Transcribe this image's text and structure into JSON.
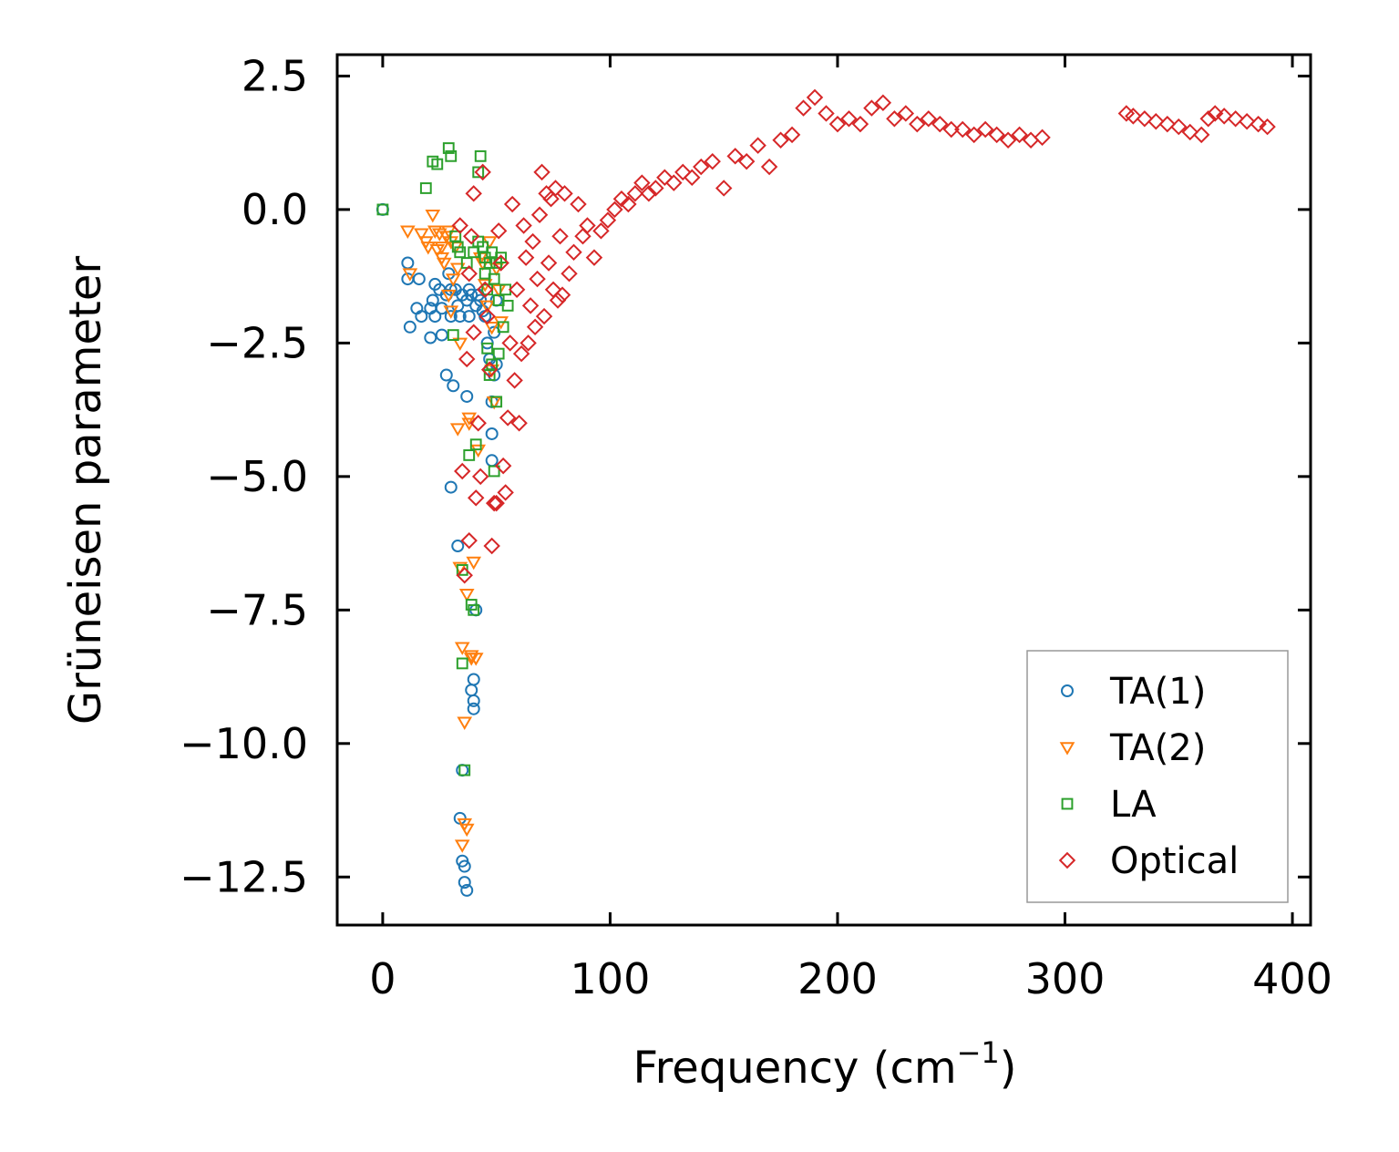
{
  "chart_data": {
    "type": "scatter",
    "xlabel": "Frequency (cm",
    "xlabel_sup": "−1",
    "xlabel_end": ")",
    "ylabel": "Grüneisen parameter",
    "xlim": [
      -20,
      408
    ],
    "ylim": [
      -13.4,
      2.9
    ],
    "x_ticks": [
      0,
      100,
      200,
      300,
      400
    ],
    "x_tick_labels": [
      "0",
      "100",
      "200",
      "300",
      "400"
    ],
    "y_ticks": [
      2.5,
      0.0,
      -2.5,
      -5.0,
      -7.5,
      -10.0,
      -12.5
    ],
    "y_tick_labels": [
      "2.5",
      "0.0",
      "−2.5",
      "−5.0",
      "−7.5",
      "−10.0",
      "−12.5"
    ],
    "legend_position": "lower-right",
    "series": [
      {
        "name": "TA(1)",
        "marker": "circle",
        "color": "#1f77b4",
        "x": [
          0,
          11,
          11,
          12,
          15,
          16,
          17,
          21,
          21,
          22,
          23,
          23,
          25,
          26,
          26,
          28,
          28,
          29,
          30,
          30,
          30,
          31,
          32,
          33,
          33,
          34,
          34,
          35,
          35,
          35,
          36,
          36,
          37,
          37,
          37,
          38,
          38,
          39,
          39,
          40,
          40,
          40,
          41,
          41,
          42,
          43,
          44,
          45,
          46,
          47,
          47,
          48,
          48,
          48,
          49,
          49,
          50,
          50
        ],
        "y": [
          0.0,
          -1.0,
          -1.3,
          -2.2,
          -1.85,
          -1.3,
          -2.0,
          -2.4,
          -1.85,
          -1.7,
          -1.4,
          -2.0,
          -1.5,
          -1.85,
          -2.35,
          -1.6,
          -3.1,
          -1.2,
          -2.0,
          -1.5,
          -5.2,
          -3.3,
          -1.5,
          -6.3,
          -1.8,
          -2.0,
          -11.4,
          -1.6,
          -12.2,
          -10.5,
          -12.3,
          -12.6,
          -1.7,
          -12.75,
          -3.5,
          -1.5,
          -2.0,
          -1.6,
          -9.0,
          -8.8,
          -9.2,
          -9.35,
          -7.5,
          -1.8,
          -1.6,
          -1.7,
          -1.9,
          -2.0,
          -2.5,
          -2.8,
          -3.0,
          -3.6,
          -4.2,
          -4.7,
          -2.3,
          -3.1,
          -1.7,
          -2.9
        ]
      },
      {
        "name": "TA(2)",
        "marker": "triangle",
        "color": "#ff7f0e",
        "x": [
          11,
          12,
          17,
          19,
          20,
          22,
          23,
          24,
          25,
          26,
          26,
          27,
          28,
          29,
          29,
          30,
          30,
          31,
          32,
          33,
          33,
          34,
          34,
          35,
          35,
          36,
          36,
          37,
          37,
          38,
          38,
          39,
          39,
          40,
          41,
          42,
          43,
          44,
          45,
          46,
          47,
          48,
          48,
          49,
          50,
          51,
          52
        ],
        "y": [
          -0.4,
          -1.2,
          -0.45,
          -0.6,
          -0.7,
          -0.1,
          -0.4,
          -0.75,
          -0.45,
          -0.7,
          -0.9,
          -1.0,
          -0.5,
          -0.4,
          -1.6,
          -0.6,
          -1.9,
          -1.3,
          -0.7,
          -4.1,
          -1.1,
          -6.7,
          -2.5,
          -8.2,
          -11.9,
          -11.5,
          -9.6,
          -7.2,
          -11.6,
          -3.9,
          -4.0,
          -8.4,
          -8.35,
          -6.6,
          -8.4,
          -4.5,
          -0.9,
          -1.0,
          -1.4,
          -1.8,
          -0.6,
          -2.2,
          -3.0,
          -3.6,
          -1.1,
          -1.5,
          -2.1
        ]
      },
      {
        "name": "LA",
        "marker": "square",
        "color": "#2ca02c",
        "x": [
          0,
          19,
          22,
          24,
          29,
          30,
          31,
          32,
          33,
          34,
          35,
          35,
          36,
          37,
          38,
          39,
          40,
          40,
          41,
          42,
          42,
          43,
          44,
          45,
          45,
          46,
          46,
          47,
          47,
          48,
          48,
          49,
          49,
          50,
          50,
          51,
          51,
          52,
          53,
          54,
          55
        ],
        "y": [
          0.0,
          0.4,
          0.9,
          0.85,
          1.15,
          1.0,
          -2.35,
          -0.5,
          -0.7,
          -0.8,
          -6.75,
          -8.5,
          -10.5,
          -1.0,
          -4.6,
          -7.4,
          -7.5,
          -0.8,
          -4.4,
          0.7,
          -0.6,
          1.0,
          -0.7,
          -0.9,
          -1.2,
          -1.5,
          -2.6,
          -1.0,
          -3.1,
          -0.8,
          -2.9,
          -4.9,
          -1.3,
          -3.6,
          -1.0,
          -1.7,
          -2.7,
          -0.9,
          -2.2,
          -1.5,
          -1.8
        ]
      },
      {
        "name": "Optical",
        "marker": "diamond",
        "color": "#d62728",
        "x": [
          34,
          35,
          36,
          37,
          38,
          38,
          39,
          40,
          40,
          41,
          42,
          43,
          44,
          45,
          46,
          47,
          48,
          49,
          50,
          51,
          52,
          53,
          54,
          55,
          56,
          57,
          58,
          59,
          60,
          61,
          62,
          63,
          64,
          65,
          66,
          67,
          68,
          69,
          70,
          71,
          72,
          73,
          74,
          75,
          76,
          77,
          78,
          79,
          80,
          82,
          84,
          86,
          88,
          90,
          93,
          96,
          99,
          102,
          105,
          108,
          111,
          114,
          117,
          120,
          124,
          128,
          132,
          136,
          140,
          145,
          150,
          155,
          160,
          165,
          170,
          175,
          180,
          185,
          190,
          195,
          200,
          205,
          210,
          215,
          220,
          225,
          230,
          235,
          240,
          245,
          250,
          255,
          260,
          265,
          270,
          275,
          280,
          285,
          290,
          327,
          330,
          335,
          340,
          345,
          350,
          355,
          360,
          363,
          366,
          370,
          375,
          380,
          385,
          389
        ],
        "y": [
          -0.3,
          -4.9,
          -6.85,
          -2.8,
          -6.2,
          -1.2,
          -0.5,
          0.3,
          -2.3,
          -5.4,
          -4.0,
          -5.0,
          0.7,
          -1.5,
          -2.0,
          -3.0,
          -6.3,
          -5.5,
          -5.5,
          -0.4,
          -1.0,
          -4.8,
          -5.3,
          -3.9,
          -2.5,
          0.1,
          -3.2,
          -1.5,
          -4.0,
          -2.7,
          -0.3,
          -0.9,
          -2.5,
          -1.8,
          -0.6,
          -2.2,
          -1.3,
          -0.1,
          0.7,
          -2.0,
          0.3,
          -1.0,
          0.2,
          -1.5,
          0.4,
          -1.7,
          -0.5,
          -1.6,
          0.3,
          -1.2,
          -0.8,
          0.1,
          -0.5,
          -0.3,
          -0.9,
          -0.4,
          -0.2,
          0.0,
          0.2,
          0.1,
          0.3,
          0.5,
          0.3,
          0.4,
          0.6,
          0.5,
          0.7,
          0.6,
          0.8,
          0.9,
          0.4,
          1.0,
          0.9,
          1.2,
          0.8,
          1.3,
          1.4,
          1.9,
          2.1,
          1.8,
          1.6,
          1.7,
          1.6,
          1.9,
          2.0,
          1.7,
          1.8,
          1.6,
          1.7,
          1.6,
          1.5,
          1.5,
          1.4,
          1.5,
          1.4,
          1.3,
          1.4,
          1.3,
          1.35,
          1.8,
          1.75,
          1.7,
          1.65,
          1.6,
          1.55,
          1.45,
          1.4,
          1.7,
          1.8,
          1.75,
          1.7,
          1.65,
          1.6,
          1.55
        ]
      }
    ]
  }
}
